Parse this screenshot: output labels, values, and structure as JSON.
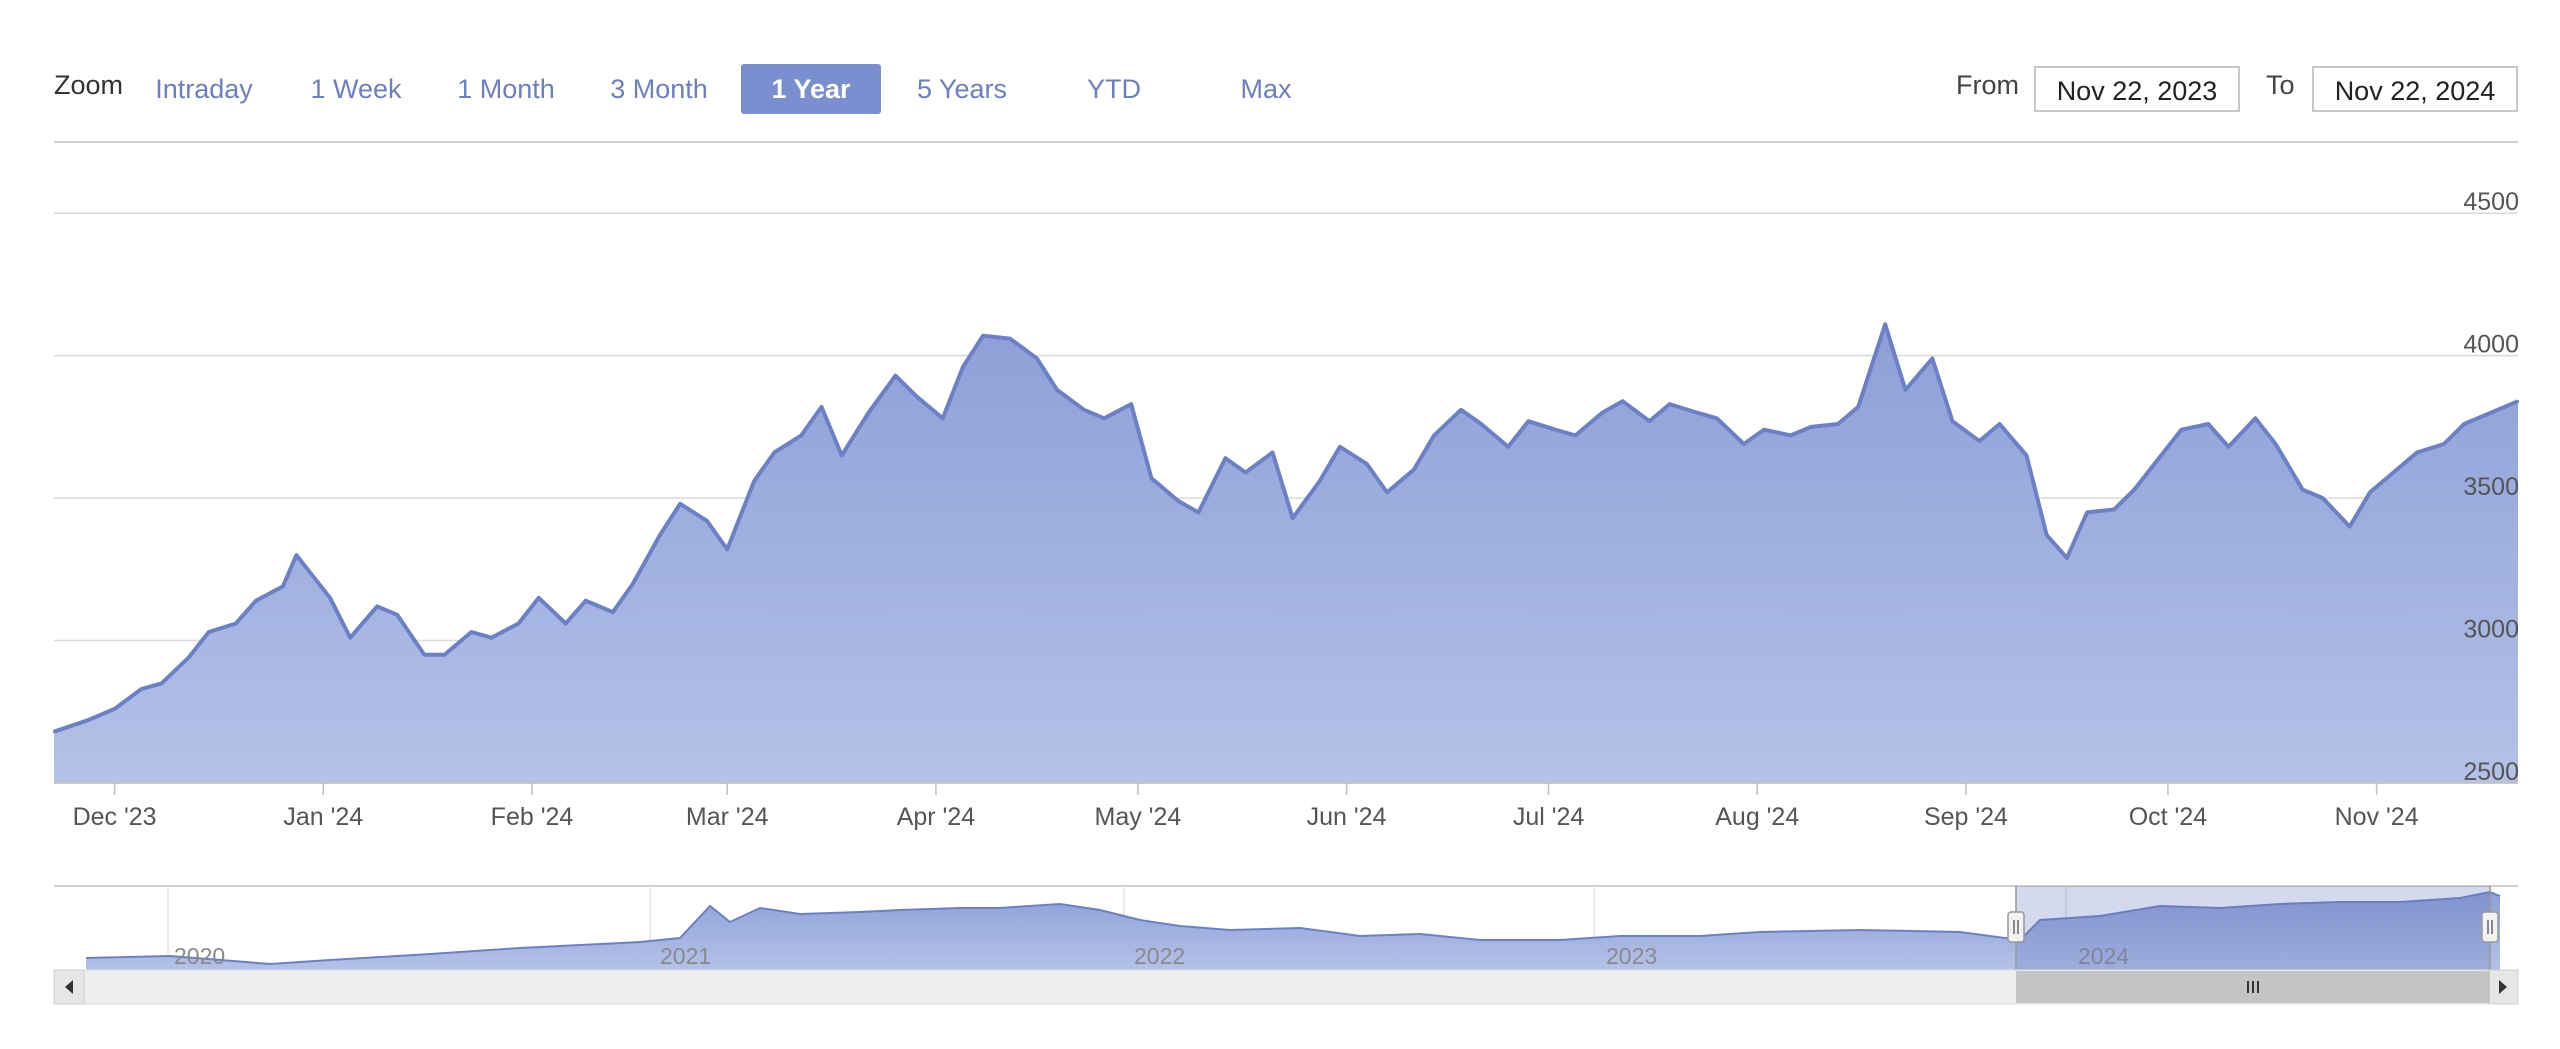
{
  "toolbar": {
    "zoom_label": "Zoom",
    "buttons": [
      "Intraday",
      "1 Week",
      "1 Month",
      "3 Month",
      "1 Year",
      "5 Years",
      "YTD",
      "Max"
    ],
    "active": "1 Year",
    "from_label": "From",
    "from_value": "Nov 22, 2023",
    "to_label": "To",
    "to_value": "Nov 22, 2024"
  },
  "colors": {
    "line": "#6b80c7",
    "fill_top": "#8d9fd7",
    "fill_bottom": "#b4c2e8",
    "active_button": "#7a8ed0",
    "grid": "#d9d9d9"
  },
  "chart_data": {
    "type": "area",
    "x_start": "2023-11-22",
    "x_end": "2024-11-22",
    "ylim": [
      2500,
      4750
    ],
    "yticks": [
      2500,
      3000,
      3500,
      4000,
      4500
    ],
    "xtick_labels": [
      "Dec '23",
      "Jan '24",
      "Feb '24",
      "Mar '24",
      "Apr '24",
      "May '24",
      "Jun '24",
      "Jul '24",
      "Aug '24",
      "Sep '24",
      "Oct '24",
      "Nov '24"
    ],
    "xtick_dates": [
      "2023-12-01",
      "2024-01-01",
      "2024-02-01",
      "2024-03-01",
      "2024-04-01",
      "2024-05-01",
      "2024-06-01",
      "2024-07-01",
      "2024-08-01",
      "2024-09-01",
      "2024-10-01",
      "2024-11-01"
    ],
    "grid": true,
    "series": [
      {
        "values": [
          [
            "2023-11-22",
            2680
          ],
          [
            "2023-11-27",
            2720
          ],
          [
            "2023-12-01",
            2760
          ],
          [
            "2023-12-05",
            2830
          ],
          [
            "2023-12-08",
            2850
          ],
          [
            "2023-12-12",
            2940
          ],
          [
            "2023-12-15",
            3030
          ],
          [
            "2023-12-19",
            3060
          ],
          [
            "2023-12-22",
            3140
          ],
          [
            "2023-12-26",
            3190
          ],
          [
            "2023-12-28",
            3300
          ],
          [
            "2024-01-02",
            3150
          ],
          [
            "2024-01-05",
            3010
          ],
          [
            "2024-01-09",
            3120
          ],
          [
            "2024-01-12",
            3090
          ],
          [
            "2024-01-16",
            2950
          ],
          [
            "2024-01-19",
            2950
          ],
          [
            "2024-01-23",
            3030
          ],
          [
            "2024-01-26",
            3010
          ],
          [
            "2024-01-30",
            3060
          ],
          [
            "2024-02-02",
            3150
          ],
          [
            "2024-02-06",
            3060
          ],
          [
            "2024-02-09",
            3140
          ],
          [
            "2024-02-13",
            3100
          ],
          [
            "2024-02-16",
            3200
          ],
          [
            "2024-02-20",
            3370
          ],
          [
            "2024-02-23",
            3480
          ],
          [
            "2024-02-27",
            3420
          ],
          [
            "2024-03-01",
            3320
          ],
          [
            "2024-03-05",
            3560
          ],
          [
            "2024-03-08",
            3660
          ],
          [
            "2024-03-12",
            3720
          ],
          [
            "2024-03-15",
            3820
          ],
          [
            "2024-03-18",
            3650
          ],
          [
            "2024-03-22",
            3800
          ],
          [
            "2024-03-26",
            3930
          ],
          [
            "2024-03-29",
            3860
          ],
          [
            "2024-04-02",
            3780
          ],
          [
            "2024-04-05",
            3960
          ],
          [
            "2024-04-08",
            4070
          ],
          [
            "2024-04-12",
            4060
          ],
          [
            "2024-04-16",
            3990
          ],
          [
            "2024-04-19",
            3880
          ],
          [
            "2024-04-23",
            3810
          ],
          [
            "2024-04-26",
            3780
          ],
          [
            "2024-04-30",
            3830
          ],
          [
            "2024-05-03",
            3570
          ],
          [
            "2024-05-07",
            3490
          ],
          [
            "2024-05-10",
            3450
          ],
          [
            "2024-05-14",
            3640
          ],
          [
            "2024-05-17",
            3590
          ],
          [
            "2024-05-21",
            3660
          ],
          [
            "2024-05-24",
            3430
          ],
          [
            "2024-05-28",
            3560
          ],
          [
            "2024-05-31",
            3680
          ],
          [
            "2024-06-04",
            3620
          ],
          [
            "2024-06-07",
            3520
          ],
          [
            "2024-06-11",
            3600
          ],
          [
            "2024-06-14",
            3720
          ],
          [
            "2024-06-18",
            3810
          ],
          [
            "2024-06-21",
            3760
          ],
          [
            "2024-06-25",
            3680
          ],
          [
            "2024-06-28",
            3770
          ],
          [
            "2024-07-02",
            3740
          ],
          [
            "2024-07-05",
            3720
          ],
          [
            "2024-07-09",
            3800
          ],
          [
            "2024-07-12",
            3840
          ],
          [
            "2024-07-16",
            3770
          ],
          [
            "2024-07-19",
            3830
          ],
          [
            "2024-07-23",
            3800
          ],
          [
            "2024-07-26",
            3780
          ],
          [
            "2024-07-30",
            3690
          ],
          [
            "2024-08-02",
            3740
          ],
          [
            "2024-08-06",
            3720
          ],
          [
            "2024-08-09",
            3750
          ],
          [
            "2024-08-13",
            3760
          ],
          [
            "2024-08-16",
            3820
          ],
          [
            "2024-08-20",
            4110
          ],
          [
            "2024-08-23",
            3880
          ],
          [
            "2024-08-27",
            3990
          ],
          [
            "2024-08-30",
            3770
          ],
          [
            "2024-09-03",
            3700
          ],
          [
            "2024-09-06",
            3760
          ],
          [
            "2024-09-10",
            3650
          ],
          [
            "2024-09-13",
            3370
          ],
          [
            "2024-09-16",
            3290
          ],
          [
            "2024-09-19",
            3450
          ],
          [
            "2024-09-23",
            3460
          ],
          [
            "2024-09-26",
            3530
          ],
          [
            "2024-09-30",
            3650
          ],
          [
            "2024-10-03",
            3740
          ],
          [
            "2024-10-07",
            3760
          ],
          [
            "2024-10-10",
            3680
          ],
          [
            "2024-10-14",
            3780
          ],
          [
            "2024-10-17",
            3690
          ],
          [
            "2024-10-21",
            3530
          ],
          [
            "2024-10-24",
            3500
          ],
          [
            "2024-10-28",
            3400
          ],
          [
            "2024-10-31",
            3520
          ],
          [
            "2024-11-04",
            3600
          ],
          [
            "2024-11-07",
            3660
          ],
          [
            "2024-11-11",
            3690
          ],
          [
            "2024-11-14",
            3760
          ],
          [
            "2024-11-18",
            3800
          ],
          [
            "2024-11-22",
            3840
          ]
        ]
      }
    ]
  },
  "navigator": {
    "year_labels": [
      "2020",
      "2021",
      "2022",
      "2023",
      "2024"
    ],
    "selection_from": "2023-11-22",
    "selection_to": "2024-11-22"
  }
}
